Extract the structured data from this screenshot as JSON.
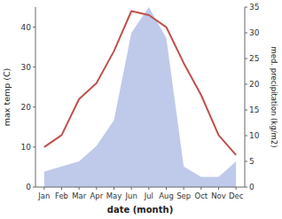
{
  "chart_data": {
    "type": "line",
    "categories": [
      "Jan",
      "Feb",
      "Mar",
      "Apr",
      "May",
      "Jun",
      "Jul",
      "Aug",
      "Sep",
      "Oct",
      "Nov",
      "Dec"
    ],
    "xlabel": "date (month)",
    "ylabel": "max temp (C)",
    "y2label": "med. precipitation (kg/m2)",
    "series": [
      {
        "type": "area",
        "axis": "y2",
        "color": "#b8c4e8",
        "values": [
          3,
          4,
          5,
          8,
          13,
          30,
          35,
          29,
          4,
          2,
          2,
          5
        ]
      },
      {
        "type": "line",
        "color": "#c0504d",
        "values": [
          10,
          13,
          22,
          26,
          34,
          44,
          43,
          40,
          31,
          23,
          13,
          8
        ]
      }
    ],
    "ylim": [
      0,
      45
    ],
    "yticks": [
      0,
      10,
      20,
      30,
      40
    ],
    "y2lim": [
      0,
      35
    ],
    "y2ticks": [
      0,
      5,
      10,
      15,
      20,
      25,
      30,
      35
    ],
    "grid": false
  }
}
